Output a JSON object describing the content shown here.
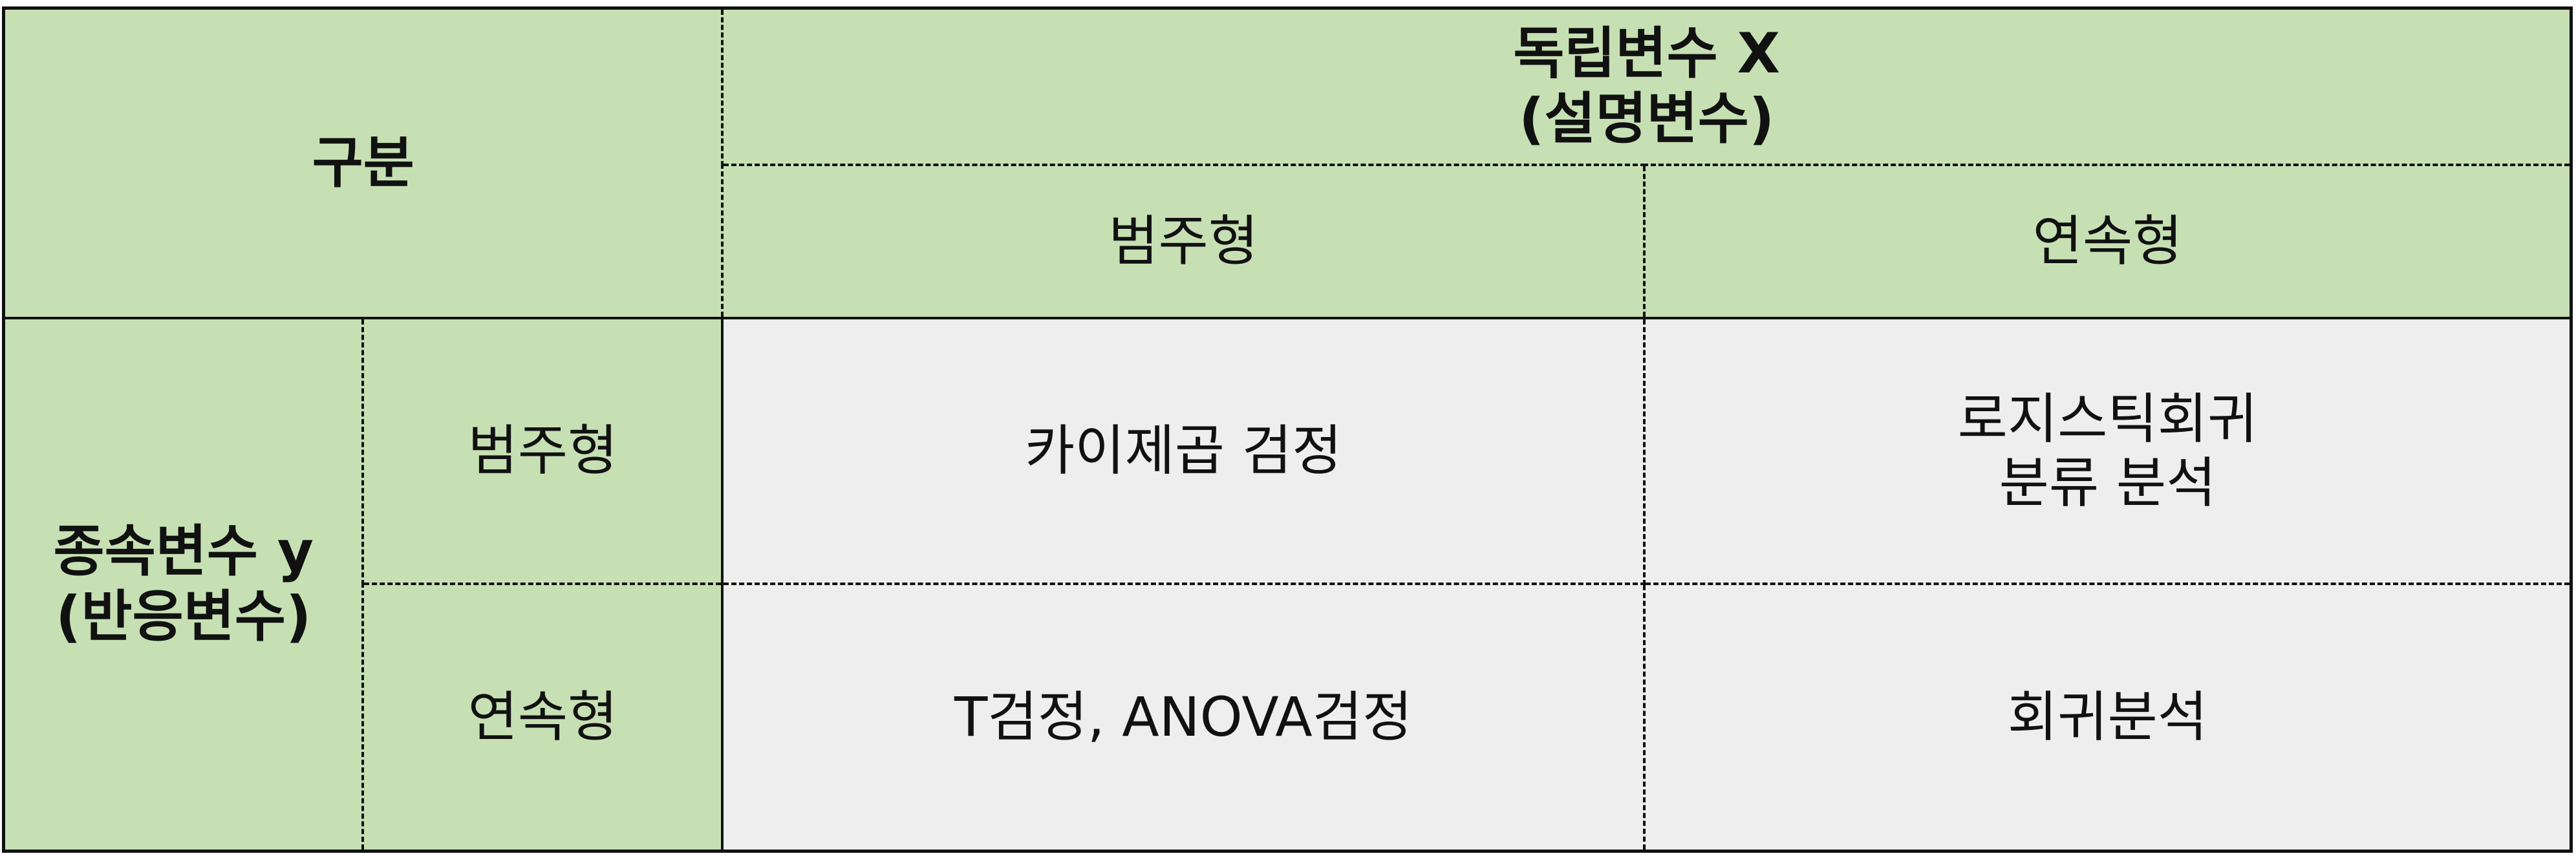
{
  "header": {
    "corner_label": "구분",
    "independent_title_line1": "독립변수 X",
    "independent_title_line2": "(설명변수)",
    "col_categorical": "범주형",
    "col_continuous": "연속형"
  },
  "rows": {
    "dependent_title_line1": "종속변수 y",
    "dependent_title_line2": "(반응변수)",
    "row_categorical": "범주형",
    "row_continuous": "연속형"
  },
  "cells": {
    "cat_cat": "카이제곱 검정",
    "cat_cont_line1": "로지스틱회귀",
    "cat_cont_line2": "분류 분석",
    "cont_cat": "T검정, ANOVA검정",
    "cont_cont": "회귀분석"
  },
  "colors": {
    "header_fill": "#c6e0b4",
    "body_fill": "#eeeeee",
    "border": "#111111"
  }
}
